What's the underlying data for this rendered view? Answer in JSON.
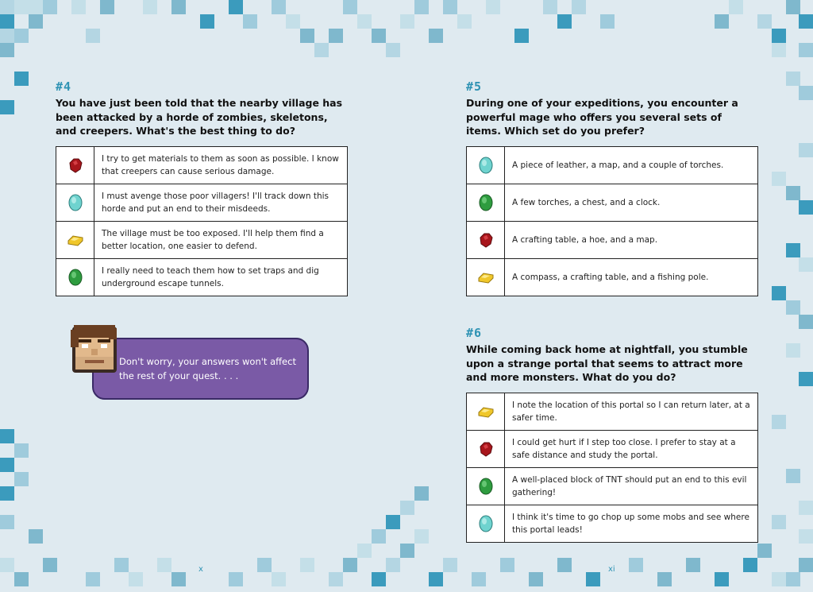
{
  "left_page": {
    "question": {
      "number": "#4",
      "text": "You have just been told that the nearby village has been attacked by a horde of zombies, skeletons, and creepers. What's the best thing to do?",
      "answers": [
        {
          "gem": "redstone",
          "text": "I try to get materials to them as soon as possible. I know that creepers can cause serious damage."
        },
        {
          "gem": "diamond",
          "text": "I must avenge those poor villagers! I'll track down this horde and put an end to their misdeeds."
        },
        {
          "gem": "gold",
          "text": "The village must be too exposed. I'll help them find a better location, one easier to defend."
        },
        {
          "gem": "emerald",
          "text": "I really need to teach them how to set traps and dig underground escape tunnels."
        }
      ]
    },
    "speech_bubble": "Don't worry, your answers won't affect the rest of your quest. . . .",
    "page_number": "x"
  },
  "right_page": {
    "questions": [
      {
        "number": "#5",
        "text": "During one of your expeditions, you encounter a powerful mage who offers you several sets of items. Which set do you prefer?",
        "answers": [
          {
            "gem": "diamond",
            "text": "A piece of leather, a map, and a couple of torches."
          },
          {
            "gem": "emerald",
            "text": "A few torches, a chest, and a clock."
          },
          {
            "gem": "redstone",
            "text": "A crafting table, a hoe, and a map."
          },
          {
            "gem": "gold",
            "text": "A compass, a crafting table, and a fishing pole."
          }
        ]
      },
      {
        "number": "#6",
        "text": "While coming back home at nightfall, you stumble upon a strange portal that seems to attract more and more monsters. What do you do?",
        "answers": [
          {
            "gem": "gold",
            "text": "I note the location of this portal so I can return later, at a safer time."
          },
          {
            "gem": "redstone",
            "text": "I could get hurt if I step too close. I prefer to stay at a safe distance and study the portal."
          },
          {
            "gem": "emerald",
            "text": "A well-placed block of TNT should put an end to this evil gathering!"
          },
          {
            "gem": "diamond",
            "text": "I think it's time to go chop up some mobs and see where this portal leads!"
          }
        ]
      }
    ],
    "page_number": "xi"
  },
  "colors": {
    "background": "#dfeaf0",
    "accent": "#2f93b4",
    "bubble": "#7a5aa6",
    "diamond": "#6fd3cf",
    "emerald": "#2e9c3f",
    "redstone": "#a8161c",
    "gold": "#f0c72a"
  }
}
